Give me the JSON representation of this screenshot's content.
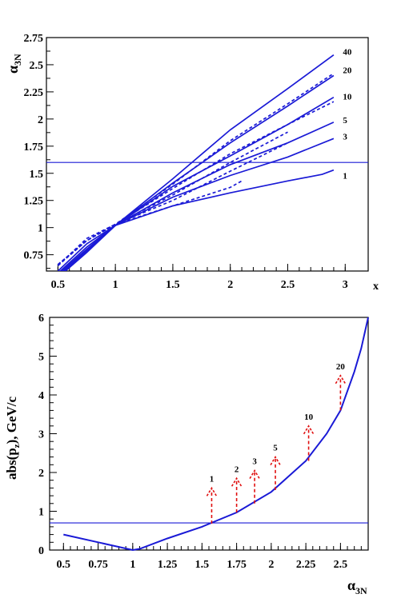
{
  "chart_data": [
    {
      "type": "line",
      "xlabel": "x",
      "ylabel": "α3N",
      "ylabel_main": "α",
      "ylabel_sub": "3N",
      "xlim": [
        0.4,
        3.2
      ],
      "ylim": [
        0.6,
        2.75
      ],
      "xticks": [
        0.5,
        1,
        1.5,
        2,
        2.5,
        3
      ],
      "xtick_labels": [
        "0.5",
        "1",
        "1.5",
        "2",
        "2.5",
        "3"
      ],
      "yticks": [
        0.75,
        1,
        1.25,
        1.5,
        1.75,
        2,
        2.25,
        2.5,
        2.75
      ],
      "ytick_labels": [
        "0.75",
        "1",
        "1.25",
        "1.5",
        "1.75",
        "2",
        "2.25",
        "2.5",
        "2.75"
      ],
      "color": "#1a1ad6",
      "hline": 1.6,
      "series": [
        {
          "name": "1",
          "style": "solid",
          "x": [
            0.5,
            0.75,
            1,
            1.5,
            2,
            2.5,
            2.8,
            2.9
          ],
          "y": [
            0.6,
            0.85,
            1.02,
            1.2,
            1.32,
            1.43,
            1.49,
            1.53
          ]
        },
        {
          "name": "1",
          "style": "dashed",
          "x": [
            0.5,
            0.75,
            1,
            1.5,
            2,
            2.1
          ],
          "y": [
            0.65,
            0.9,
            1.03,
            1.2,
            1.37,
            1.43
          ]
        },
        {
          "name": "3",
          "style": "solid",
          "x": [
            0.5,
            0.75,
            1,
            1.5,
            2,
            2.5,
            2.9
          ],
          "y": [
            0.58,
            0.82,
            1.02,
            1.28,
            1.48,
            1.65,
            1.82
          ]
        },
        {
          "name": "3",
          "style": "dashed",
          "x": [
            0.5,
            0.75,
            1,
            1.5,
            2,
            2.5
          ],
          "y": [
            0.65,
            0.88,
            1.03,
            1.25,
            1.52,
            1.78
          ]
        },
        {
          "name": "5",
          "style": "solid",
          "x": [
            0.5,
            0.75,
            1,
            1.5,
            2,
            2.5,
            2.9
          ],
          "y": [
            0.57,
            0.8,
            1.02,
            1.32,
            1.58,
            1.78,
            1.97
          ]
        },
        {
          "name": "5",
          "style": "dashed",
          "x": [
            0.5,
            0.75,
            1,
            1.5,
            2,
            2.5
          ],
          "y": [
            0.66,
            0.88,
            1.03,
            1.3,
            1.6,
            1.88
          ]
        },
        {
          "name": "10",
          "style": "solid",
          "x": [
            0.5,
            0.75,
            1,
            1.5,
            2,
            2.5,
            2.9
          ],
          "y": [
            0.56,
            0.79,
            1.02,
            1.38,
            1.66,
            1.95,
            2.2
          ]
        },
        {
          "name": "10",
          "style": "dashed",
          "x": [
            0.5,
            0.75,
            1,
            1.5,
            2,
            2.5,
            2.9
          ],
          "y": [
            0.66,
            0.88,
            1.03,
            1.36,
            1.68,
            1.95,
            2.16
          ]
        },
        {
          "name": "20",
          "style": "solid",
          "x": [
            0.5,
            0.75,
            1,
            1.5,
            2,
            2.5,
            2.9
          ],
          "y": [
            0.55,
            0.78,
            1.02,
            1.41,
            1.78,
            2.12,
            2.4
          ]
        },
        {
          "name": "20",
          "style": "dashed",
          "x": [
            0.5,
            0.75,
            1,
            1.5,
            2,
            2.5,
            2.9
          ],
          "y": [
            0.66,
            0.88,
            1.03,
            1.4,
            1.8,
            2.14,
            2.42
          ]
        },
        {
          "name": "40",
          "style": "solid",
          "x": [
            0.5,
            0.75,
            1,
            1.5,
            2,
            2.5,
            2.9
          ],
          "y": [
            0.54,
            0.77,
            1.02,
            1.45,
            1.9,
            2.28,
            2.59
          ]
        }
      ],
      "labels": [
        {
          "text": "40",
          "x": 2.98,
          "y": 2.62
        },
        {
          "text": "20",
          "x": 2.98,
          "y": 2.45
        },
        {
          "text": "10",
          "x": 2.98,
          "y": 2.21
        },
        {
          "text": "5",
          "x": 2.98,
          "y": 1.99
        },
        {
          "text": "3",
          "x": 2.98,
          "y": 1.84
        },
        {
          "text": "1",
          "x": 2.98,
          "y": 1.48
        }
      ]
    },
    {
      "type": "line",
      "xlabel": "α3N",
      "xlabel_main": "α",
      "xlabel_sub": "3N",
      "ylabel": "abs(pz), GeV/c",
      "ylabel_pre": "abs(p",
      "ylabel_sub": "z",
      "ylabel_post": "), GeV/c",
      "xlim": [
        0.4,
        2.7
      ],
      "ylim": [
        0,
        6
      ],
      "xticks": [
        0.5,
        0.75,
        1,
        1.25,
        1.5,
        1.75,
        2,
        2.25,
        2.5
      ],
      "xtick_labels": [
        "0.5",
        "0.75",
        "1",
        "1.25",
        "1.5",
        "1.75",
        "2",
        "2.25",
        "2.5"
      ],
      "yticks": [
        0,
        1,
        2,
        3,
        4,
        5,
        6
      ],
      "ytick_labels": [
        "0",
        "1",
        "2",
        "3",
        "4",
        "5",
        "6"
      ],
      "color": "#1a1ad6",
      "arrow_color": "#e01010",
      "hline": 0.7,
      "curve": {
        "x": [
          0.5,
          0.75,
          1,
          1.05,
          1.25,
          1.5,
          1.75,
          2,
          2.25,
          2.4,
          2.5,
          2.6,
          2.65,
          2.7
        ],
        "y": [
          0.4,
          0.2,
          0.0,
          0.03,
          0.3,
          0.6,
          0.97,
          1.5,
          2.3,
          3.0,
          3.6,
          4.6,
          5.2,
          6.0
        ]
      },
      "arrows": [
        {
          "label": "1",
          "x": 1.57,
          "y_from": 0.68,
          "y_to": 1.6
        },
        {
          "label": "2",
          "x": 1.75,
          "y_from": 0.97,
          "y_to": 1.85
        },
        {
          "label": "3",
          "x": 1.88,
          "y_from": 1.2,
          "y_to": 2.05
        },
        {
          "label": "5",
          "x": 2.03,
          "y_from": 1.55,
          "y_to": 2.4
        },
        {
          "label": "10",
          "x": 2.27,
          "y_from": 2.3,
          "y_to": 3.2
        },
        {
          "label": "20",
          "x": 2.5,
          "y_from": 3.6,
          "y_to": 4.5
        }
      ]
    }
  ]
}
